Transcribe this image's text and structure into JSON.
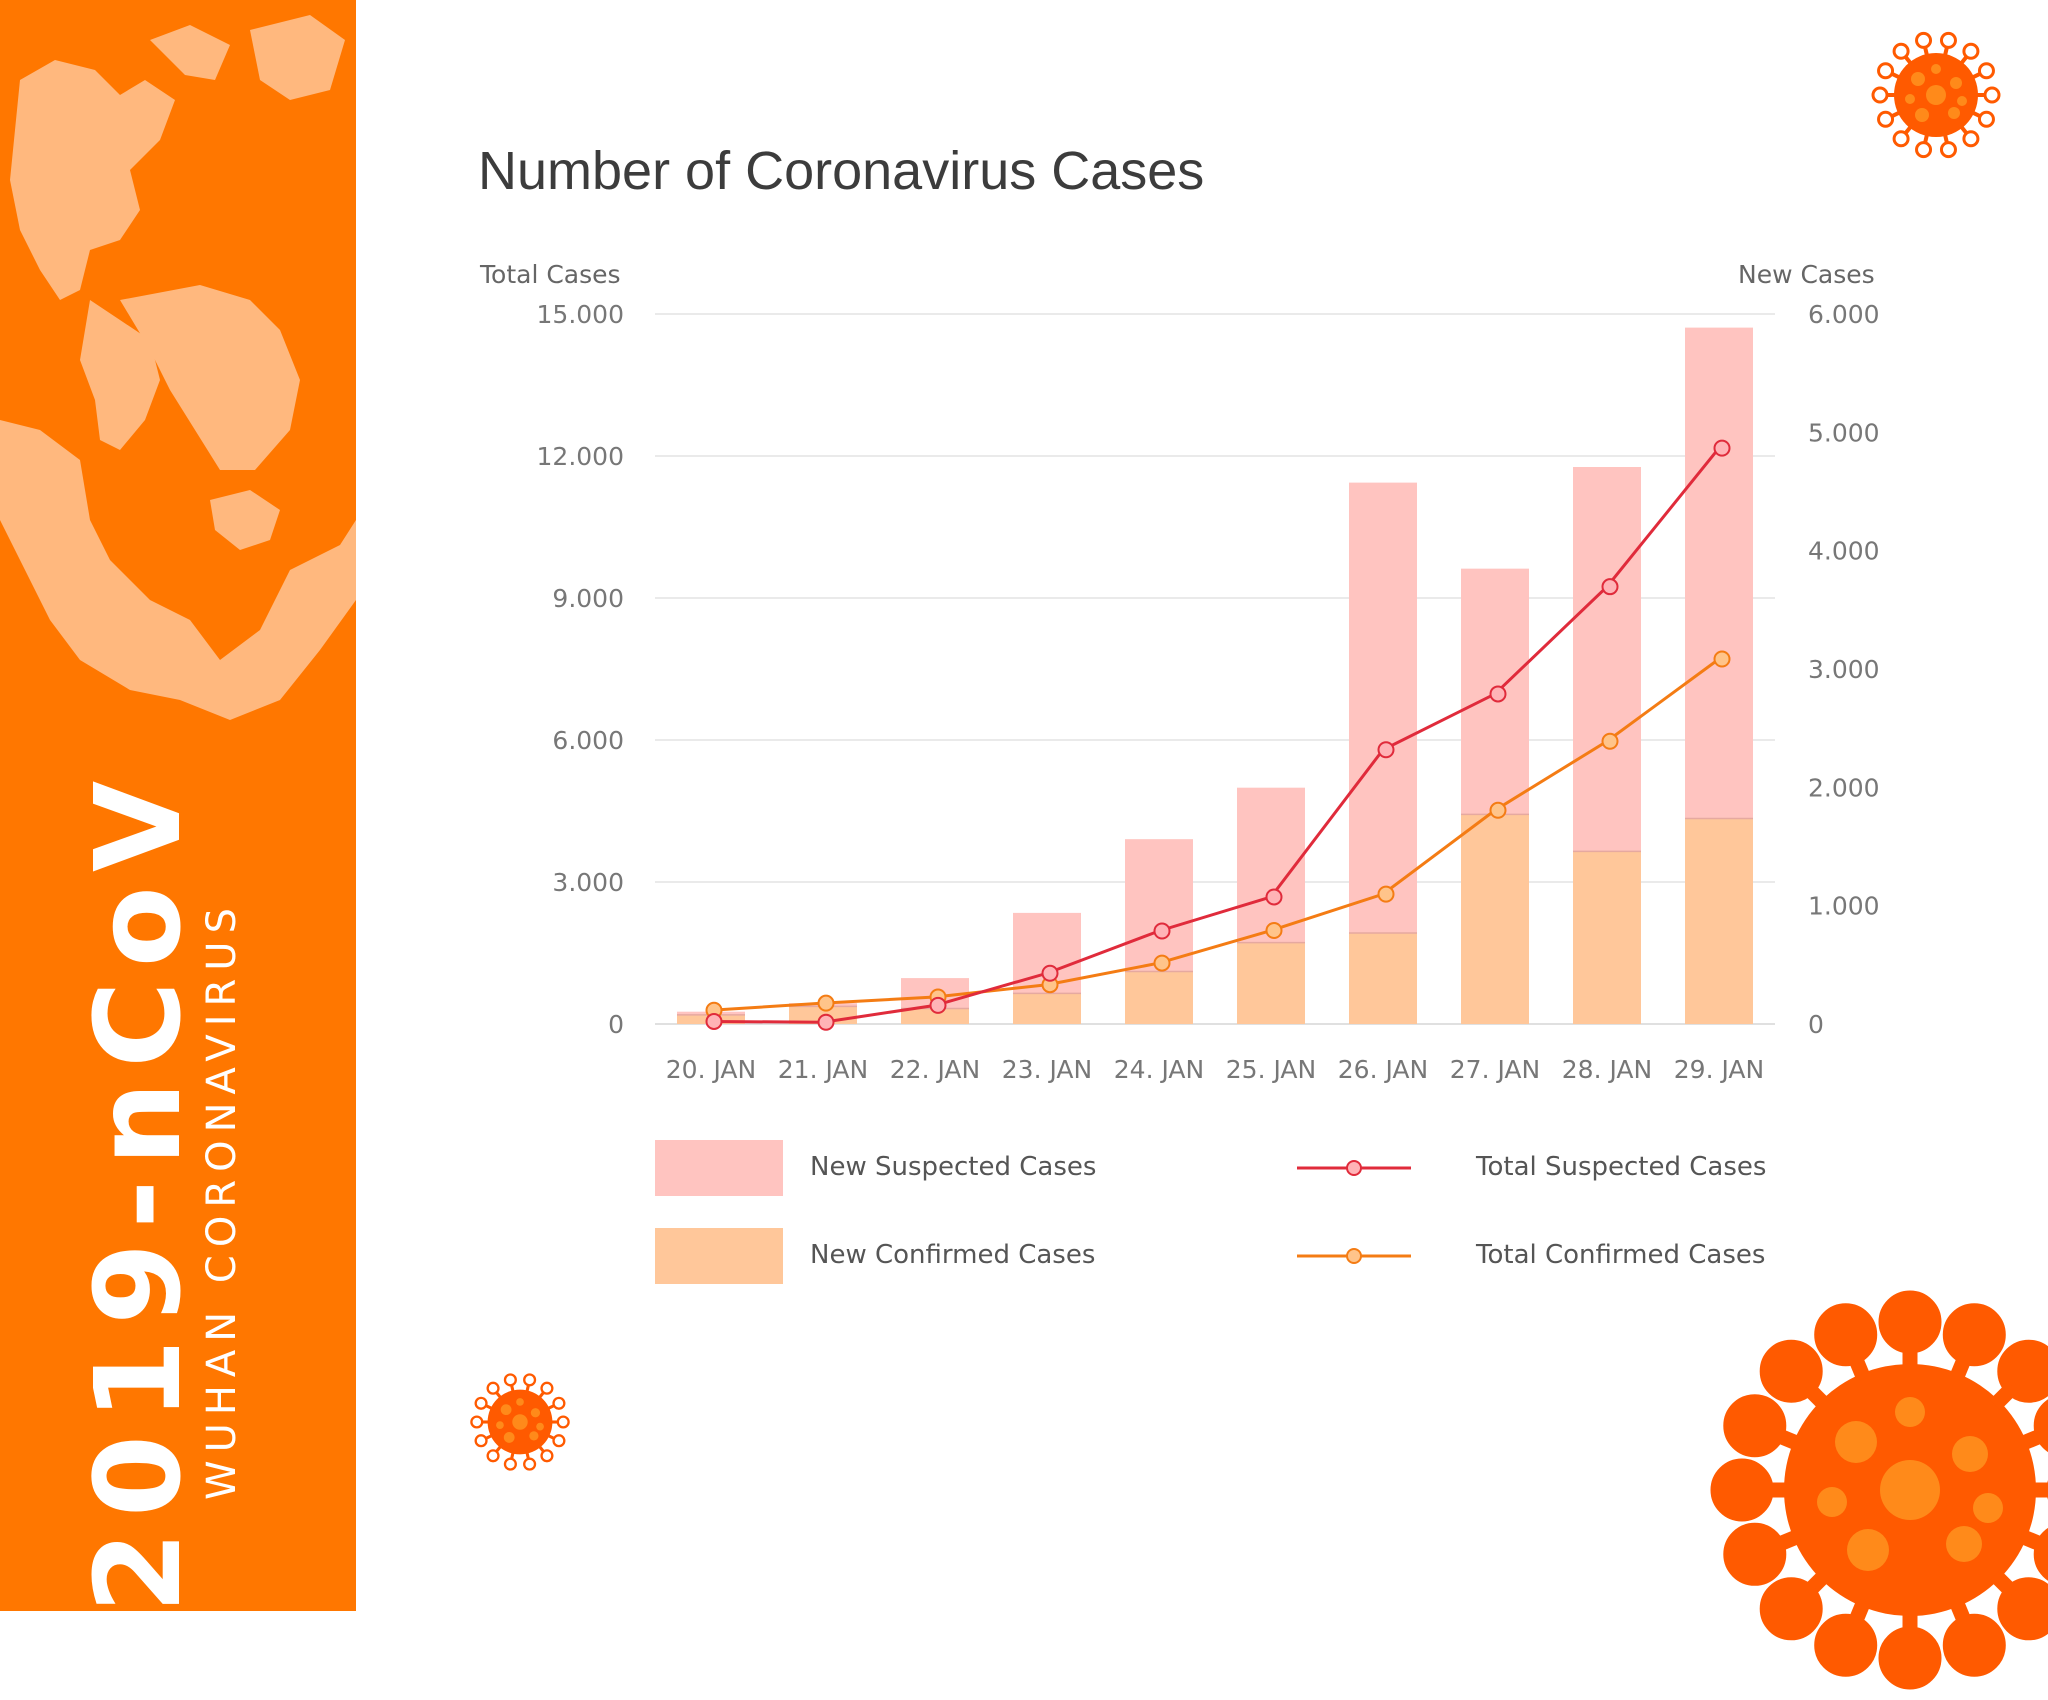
{
  "sidebar": {
    "title": "2019-nCoV",
    "subtitle": "WUHAN CORONAVIRUS"
  },
  "colors": {
    "accent": "#ff7700",
    "new_suspected": "#ffc4c0",
    "new_confirmed": "#ffc79a",
    "total_suspected": "#e02b3b",
    "total_confirmed": "#f47c14",
    "virus": "#ff5a00"
  },
  "chart_data": {
    "type": "bar",
    "title": "Number of Coronavirus Cases",
    "ylabel_left": "Total Cases",
    "ylabel_right": "New Cases",
    "categories": [
      "20. JAN",
      "21. JAN",
      "22. JAN",
      "23. JAN",
      "24. JAN",
      "25. JAN",
      "26. JAN",
      "27. JAN",
      "28. JAN",
      "29. JAN"
    ],
    "left_axis": {
      "range": [
        0,
        15000
      ],
      "ticks": [
        "0",
        "3.000",
        "6.000",
        "9.000",
        "12.000",
        "15.000"
      ]
    },
    "right_axis": {
      "range": [
        0,
        6000
      ],
      "ticks": [
        "0",
        "1.000",
        "2.000",
        "3.000",
        "4.000",
        "5.000",
        "6.000"
      ]
    },
    "grid": true,
    "stacked_bars": true,
    "series": [
      {
        "name": "New Confirmed Cases",
        "kind": "bar",
        "axis": "right",
        "values": [
          77,
          149,
          131,
          259,
          444,
          688,
          769,
          1771,
          1459,
          1737
        ]
      },
      {
        "name": "New Suspected Cases",
        "kind": "bar",
        "axis": "right",
        "values": [
          27,
          27,
          257,
          680,
          1118,
          1309,
          3806,
          2077,
          3248,
          4148
        ]
      },
      {
        "name": "Total Suspected Cases",
        "kind": "line",
        "axis": "left",
        "values": [
          54,
          37,
          393,
          1072,
          1965,
          2684,
          5794,
          6973,
          9239,
          12167
        ]
      },
      {
        "name": "Total Confirmed Cases",
        "kind": "line",
        "axis": "left",
        "values": [
          291,
          440,
          571,
          830,
          1287,
          1975,
          2744,
          4515,
          5974,
          7711
        ]
      }
    ],
    "legend": [
      "New Suspected Cases",
      "New Confirmed Cases",
      "Total Suspected Cases",
      "Total Confirmed Cases"
    ],
    "legend_position": "bottom"
  },
  "icons": [
    "world-map-icon",
    "virus-icon"
  ]
}
